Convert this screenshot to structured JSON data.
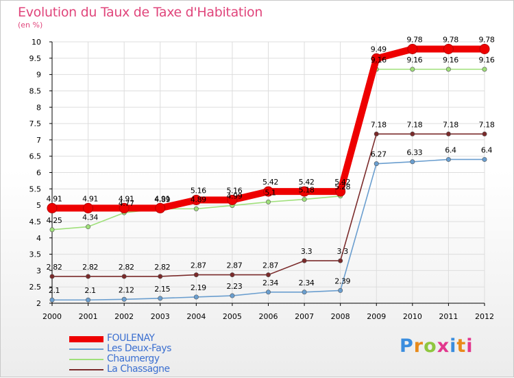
{
  "title": "Evolution du Taux de Taxe d'Habitation",
  "subtitle": "(en %)",
  "brand": {
    "text": "Proxiti",
    "colors": [
      "#3a8dde",
      "#e88a1a",
      "#8fc63f",
      "#e2378d",
      "#3a8dde",
      "#e88a1a",
      "#e2378d"
    ]
  },
  "colors": {
    "title": "#e0457b",
    "axis": "#000000",
    "grid": "#dddddd",
    "legend_text": "#3b6fd0"
  },
  "chart_data": {
    "type": "line",
    "title": "Evolution du Taux de Taxe d'Habitation",
    "ylabel": "(en %)",
    "x": [
      2000,
      2001,
      2002,
      2003,
      2004,
      2005,
      2006,
      2007,
      2008,
      2009,
      2010,
      2011,
      2012
    ],
    "ylim": [
      2,
      10
    ],
    "yticks": [
      2,
      2.5,
      3,
      3.5,
      4,
      4.5,
      5,
      5.5,
      6,
      6.5,
      7,
      7.5,
      8,
      8.5,
      9,
      9.5,
      10
    ],
    "ytick_labels": [
      "2",
      "2.5",
      "3",
      "3.5",
      "4",
      "4.5",
      "5",
      "5.5",
      "6",
      "6.5",
      "7",
      "7.5",
      "8",
      "8.5",
      "9",
      "9.5",
      "10"
    ],
    "grid": true,
    "legend_position": "bottom-left",
    "series": [
      {
        "name": "FOULENAY",
        "color": "#ee0000",
        "values": [
          4.91,
          4.91,
          4.91,
          4.91,
          5.16,
          5.16,
          5.42,
          5.42,
          5.42,
          9.49,
          9.78,
          9.78,
          9.78
        ],
        "labels": [
          "4.91",
          "4.91",
          "4.91",
          "4.91",
          "5.16",
          "5.16",
          "5.42",
          "5.42",
          "5.42",
          "9.49",
          "9.78",
          "9.78",
          "9.78"
        ]
      },
      {
        "name": "Les Deux-Fays",
        "color": "#6a9ecf",
        "values": [
          2.1,
          2.1,
          2.12,
          2.15,
          2.19,
          2.23,
          2.34,
          2.34,
          2.39,
          6.27,
          6.33,
          6.4,
          6.4
        ],
        "labels": [
          "2.1",
          "2.1",
          "2.12",
          "2.15",
          "2.19",
          "2.23",
          "2.34",
          "2.34",
          "2.39",
          "6.27",
          "6.33",
          "6.4",
          "6.4"
        ]
      },
      {
        "name": "Chaumergy",
        "color": "#9fe07a",
        "values": [
          4.25,
          4.34,
          4.77,
          4.89,
          4.89,
          4.99,
          5.1,
          5.18,
          5.28,
          9.16,
          9.16,
          9.16,
          9.16
        ],
        "labels": [
          "4.25",
          "4.34",
          "4.77",
          "4.89",
          "4.89",
          "4.99",
          "5.1",
          "5.18",
          "5.28",
          "9.16",
          "9.16",
          "9.16",
          "9.16"
        ]
      },
      {
        "name": "La Chassagne",
        "color": "#7a2a2a",
        "values": [
          2.82,
          2.82,
          2.82,
          2.82,
          2.87,
          2.87,
          2.87,
          3.3,
          3.3,
          7.18,
          7.18,
          7.18,
          7.18
        ],
        "labels": [
          "2.82",
          "2.82",
          "2.82",
          "2.82",
          "2.87",
          "2.87",
          "2.87",
          "3.3",
          "3.3",
          "7.18",
          "7.18",
          "7.18",
          "7.18"
        ]
      }
    ]
  }
}
